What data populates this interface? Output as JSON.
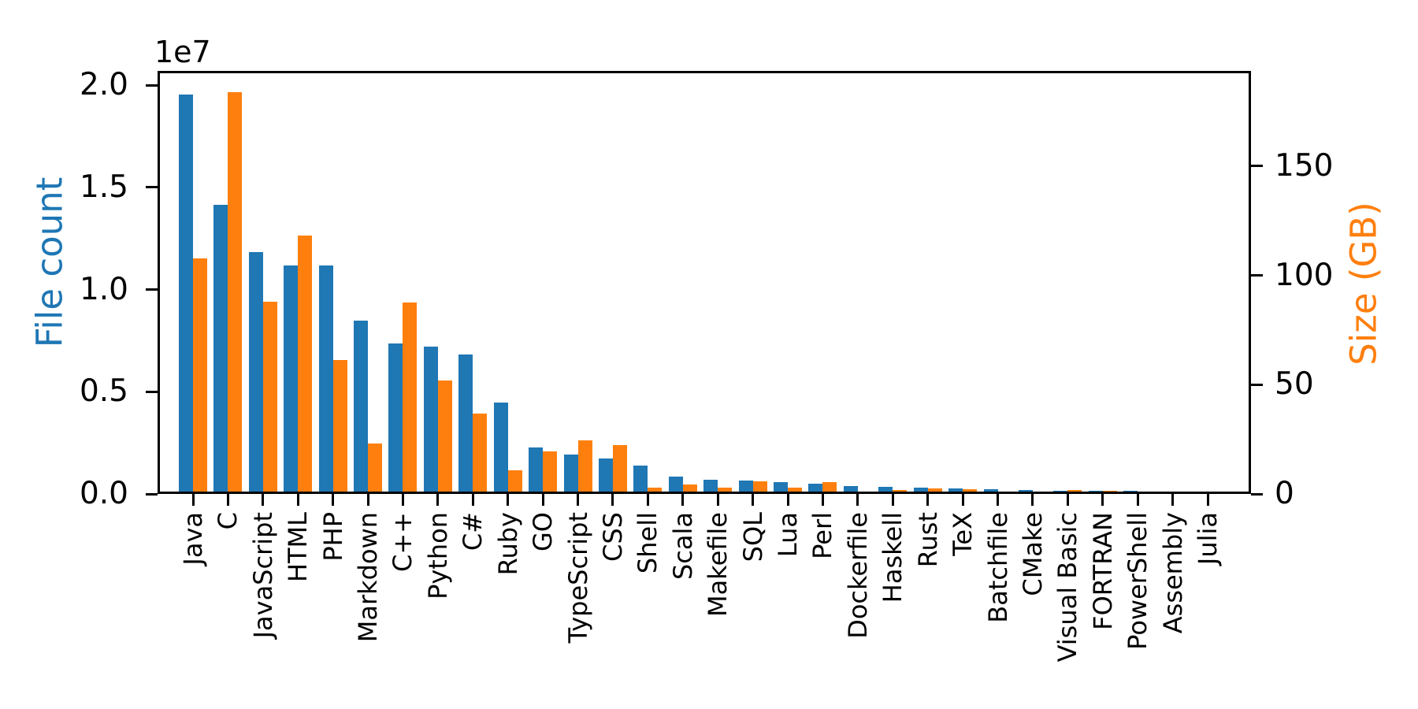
{
  "background": "#ffffff",
  "chart_data": {
    "type": "bar",
    "title": "",
    "grid": false,
    "legend": "none",
    "categories": [
      "Java",
      "C",
      "JavaScript",
      "HTML",
      "PHP",
      "Markdown",
      "C++",
      "Python",
      "C#",
      "Ruby",
      "GO",
      "TypeScript",
      "CSS",
      "Shell",
      "Scala",
      "Makefile",
      "SQL",
      "Lua",
      "Perl",
      "Dockerfile",
      "Haskell",
      "Rust",
      "TeX",
      "Batchfile",
      "CMake",
      "Visual Basic",
      "FORTRAN",
      "PowerShell",
      "Assembly",
      "Julia"
    ],
    "series": [
      {
        "name": "File count",
        "axis": "left",
        "color": "#1f77b4",
        "values": [
          19548190,
          14143113,
          11839883,
          11178557,
          11177610,
          8464157,
          7380520,
          7226626,
          6811652,
          4473331,
          2265436,
          1940406,
          1734406,
          1385648,
          835755,
          679430,
          656671,
          578554,
          497949,
          366505,
          340057,
          322431,
          251015,
          236945,
          175282,
          155652,
          142038,
          136846,
          82905,
          58317
        ]
      },
      {
        "name": "Size (GB)",
        "axis": "right",
        "color": "#ff7f0e",
        "values": [
          107.7,
          183.8,
          87.8,
          118.1,
          61.4,
          23.1,
          87.7,
          52.0,
          36.8,
          10.9,
          19.3,
          24.6,
          22.5,
          3.0,
          4.4,
          2.9,
          5.7,
          2.8,
          5.4,
          0.6,
          1.9,
          2.7,
          2.2,
          0.7,
          0.5,
          1.9,
          1.6,
          0.7,
          0.8,
          0.3
        ]
      }
    ],
    "left_axis": {
      "label": "File count",
      "label_color": "#1f77b4",
      "offset_label": "1e7",
      "tick_values": [
        0.0,
        0.5,
        1.0,
        1.5,
        2.0
      ],
      "tick_labels": [
        "0.0",
        "0.5",
        "1.0",
        "1.5",
        "2.0"
      ],
      "tick_unit": 10000000,
      "range": [
        0,
        20700000
      ]
    },
    "right_axis": {
      "label": "Size (GB)",
      "label_color": "#ff7f0e",
      "tick_values": [
        0,
        50,
        100,
        150
      ],
      "tick_labels": [
        "0",
        "50",
        "100",
        "150"
      ],
      "range": [
        0,
        193.6
      ]
    }
  }
}
